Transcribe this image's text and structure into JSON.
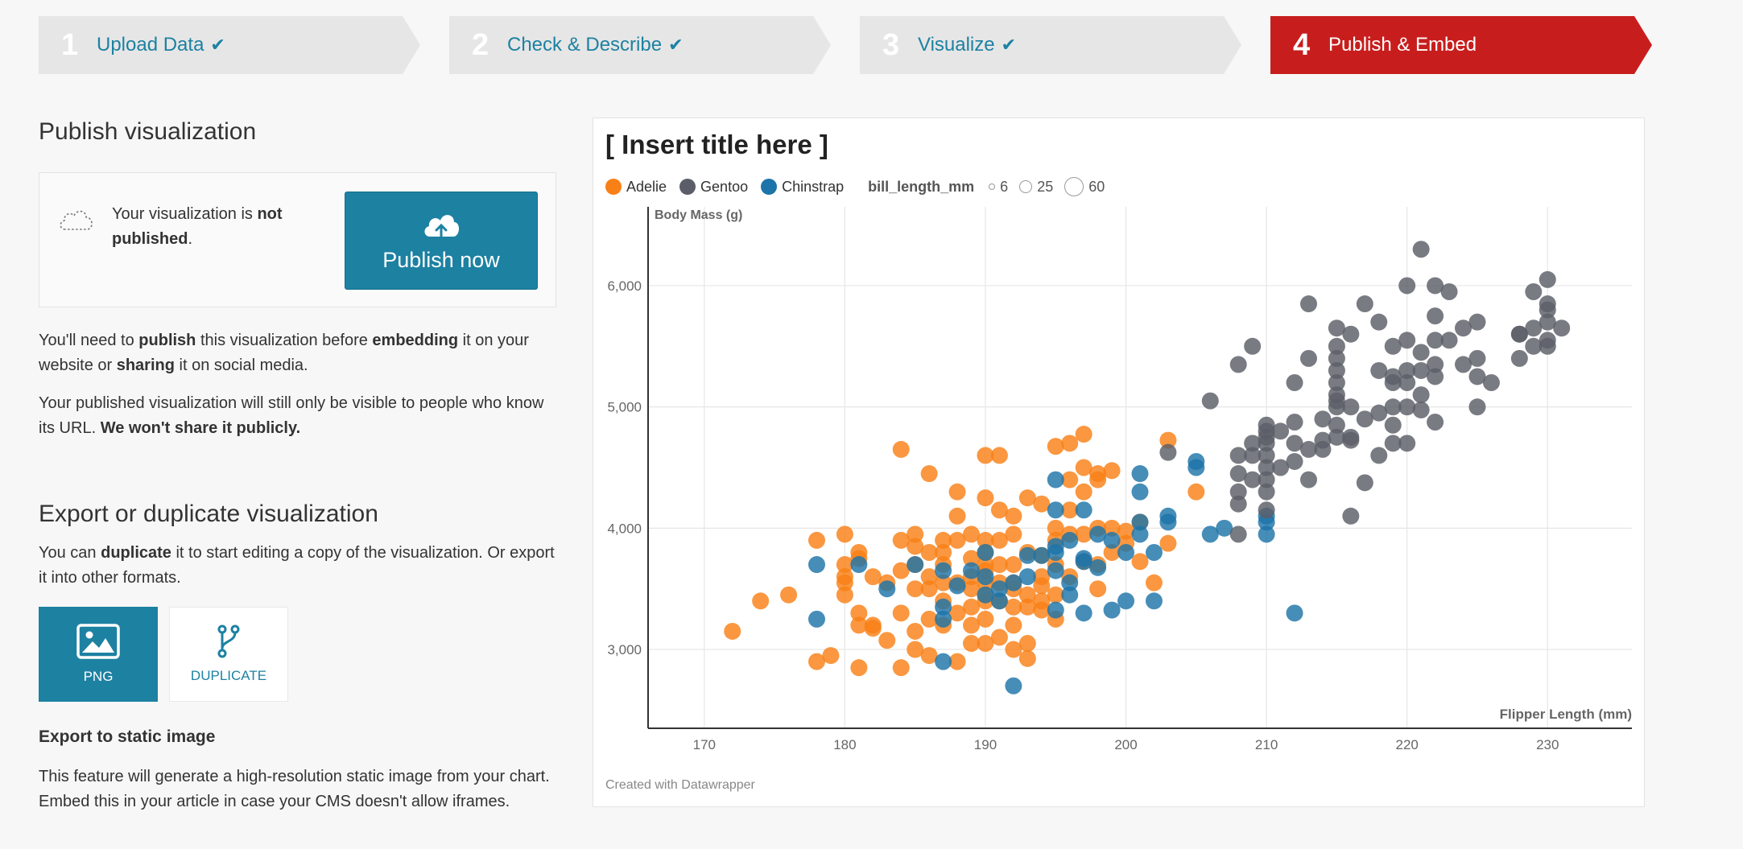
{
  "steps": [
    {
      "num": "1",
      "label": "Upload Data",
      "done": true
    },
    {
      "num": "2",
      "label": "Check & Describe",
      "done": true
    },
    {
      "num": "3",
      "label": "Visualize",
      "done": true
    },
    {
      "num": "4",
      "label": "Publish & Embed",
      "done": false
    }
  ],
  "publish": {
    "heading": "Publish visualization",
    "status_pre": "Your visualization is ",
    "status_bold": "not published",
    "status_post": ".",
    "button_label": "Publish now",
    "note1_a": "You'll need to ",
    "note1_b": "publish",
    "note1_c": " this visualization before ",
    "note1_d": "embedding",
    "note1_e": " it on your website or ",
    "note1_f": "sharing",
    "note1_g": " it on social media.",
    "note2_a": "Your published visualization will still only be visible to people who know its URL. ",
    "note2_b": "We won't share it publicly."
  },
  "export": {
    "heading": "Export or duplicate visualization",
    "desc_a": "You can ",
    "desc_b": "duplicate",
    "desc_c": " it to start editing a copy of the visualization. Or export it into other formats.",
    "png_label": "PNG",
    "duplicate_label": "DUPLICATE",
    "static_heading": "Export to static image",
    "static_desc": "This feature will generate a high-resolution static image from your chart. Embed this in your article in case your CMS doesn't allow iframes."
  },
  "chart": {
    "title": "[ Insert title here ]",
    "size_legend_title": "bill_length_mm",
    "size_legend": [
      "6",
      "25",
      "60"
    ],
    "footer": "Created with Datawrapper"
  },
  "colors": {
    "Adelie": "#f98016",
    "Gentoo": "#5b5e68",
    "Chinstrap": "#1d74a8",
    "accent": "#1d81a2",
    "active_step": "#c71e1d"
  },
  "chart_data": {
    "type": "scatter",
    "xlabel": "Flipper Length (mm)",
    "ylabel": "Body Mass (g)",
    "xlim": [
      166,
      236
    ],
    "ylim": [
      2350,
      6650
    ],
    "xticks": [
      "170",
      "180",
      "190",
      "200",
      "210",
      "220",
      "230"
    ],
    "yticks": [
      "3,000",
      "4,000",
      "5,000",
      "6,000"
    ],
    "legend_placement": "top-left",
    "grid": true,
    "series": [
      {
        "name": "Adelie",
        "points": [
          [
            172,
            3150
          ],
          [
            174,
            3400
          ],
          [
            176,
            3450
          ],
          [
            178,
            3900
          ],
          [
            178,
            2900
          ],
          [
            179,
            2950
          ],
          [
            180,
            3950
          ],
          [
            180,
            3700
          ],
          [
            180,
            3600
          ],
          [
            180,
            3550
          ],
          [
            180,
            3450
          ],
          [
            181,
            3800
          ],
          [
            181,
            3750
          ],
          [
            181,
            3300
          ],
          [
            181,
            3200
          ],
          [
            181,
            2850
          ],
          [
            182,
            3600
          ],
          [
            182,
            3200
          ],
          [
            182,
            3175
          ],
          [
            183,
            3075
          ],
          [
            183,
            3550
          ],
          [
            184,
            3900
          ],
          [
            184,
            3650
          ],
          [
            184,
            3300
          ],
          [
            184,
            4650
          ],
          [
            184,
            2850
          ],
          [
            185,
            3950
          ],
          [
            185,
            3850
          ],
          [
            185,
            3700
          ],
          [
            185,
            3500
          ],
          [
            185,
            3150
          ],
          [
            185,
            3000
          ],
          [
            186,
            3800
          ],
          [
            186,
            3600
          ],
          [
            186,
            3500
          ],
          [
            186,
            3250
          ],
          [
            186,
            2950
          ],
          [
            186,
            4450
          ],
          [
            187,
            3900
          ],
          [
            187,
            3800
          ],
          [
            187,
            3700
          ],
          [
            187,
            3550
          ],
          [
            187,
            3400
          ],
          [
            187,
            3200
          ],
          [
            188,
            3900
          ],
          [
            188,
            3550
          ],
          [
            188,
            3300
          ],
          [
            188,
            4300
          ],
          [
            188,
            2900
          ],
          [
            188,
            4100
          ],
          [
            189,
            3750
          ],
          [
            189,
            3600
          ],
          [
            189,
            3500
          ],
          [
            189,
            3350
          ],
          [
            189,
            3200
          ],
          [
            189,
            3050
          ],
          [
            189,
            3950
          ],
          [
            190,
            4600
          ],
          [
            190,
            4250
          ],
          [
            190,
            3900
          ],
          [
            190,
            3800
          ],
          [
            190,
            3700
          ],
          [
            190,
            3650
          ],
          [
            190,
            3550
          ],
          [
            190,
            3450
          ],
          [
            190,
            3400
          ],
          [
            190,
            3250
          ],
          [
            190,
            3050
          ],
          [
            191,
            4600
          ],
          [
            191,
            4150
          ],
          [
            191,
            3900
          ],
          [
            191,
            3550
          ],
          [
            191,
            3400
          ],
          [
            191,
            3100
          ],
          [
            191,
            3700
          ],
          [
            192,
            4100
          ],
          [
            192,
            3950
          ],
          [
            192,
            3700
          ],
          [
            192,
            3500
          ],
          [
            192,
            3550
          ],
          [
            192,
            3350
          ],
          [
            192,
            3200
          ],
          [
            192,
            3000
          ],
          [
            193,
            3800
          ],
          [
            193,
            3450
          ],
          [
            193,
            3350
          ],
          [
            193,
            3050
          ],
          [
            193,
            2925
          ],
          [
            193,
            4250
          ],
          [
            194,
            4200
          ],
          [
            194,
            3775
          ],
          [
            194,
            3600
          ],
          [
            194,
            3525
          ],
          [
            194,
            3400
          ],
          [
            194,
            3325
          ],
          [
            195,
            4675
          ],
          [
            195,
            4000
          ],
          [
            195,
            3900
          ],
          [
            195,
            3700
          ],
          [
            195,
            3450
          ],
          [
            195,
            3250
          ],
          [
            196,
            4700
          ],
          [
            196,
            4400
          ],
          [
            196,
            4150
          ],
          [
            196,
            3950
          ],
          [
            196,
            3600
          ],
          [
            197,
            4775
          ],
          [
            197,
            4500
          ],
          [
            197,
            4300
          ],
          [
            197,
            3950
          ],
          [
            197,
            3725
          ],
          [
            198,
            4400
          ],
          [
            198,
            4450
          ],
          [
            198,
            4000
          ],
          [
            198,
            3700
          ],
          [
            198,
            3500
          ],
          [
            199,
            4475
          ],
          [
            199,
            4000
          ],
          [
            199,
            3800
          ],
          [
            200,
            3975
          ],
          [
            200,
            3875
          ],
          [
            201,
            4050
          ],
          [
            201,
            3725
          ],
          [
            202,
            3550
          ],
          [
            203,
            4725
          ],
          [
            203,
            3875
          ],
          [
            205,
            4300
          ]
        ]
      },
      {
        "name": "Chinstrap",
        "points": [
          [
            178,
            3250
          ],
          [
            178,
            3700
          ],
          [
            181,
            3700
          ],
          [
            183,
            3500
          ],
          [
            185,
            3700
          ],
          [
            187,
            3350
          ],
          [
            187,
            3250
          ],
          [
            187,
            3650
          ],
          [
            187,
            2900
          ],
          [
            188,
            3525
          ],
          [
            189,
            3650
          ],
          [
            190,
            3450
          ],
          [
            190,
            3800
          ],
          [
            190,
            3600
          ],
          [
            191,
            3400
          ],
          [
            191,
            3500
          ],
          [
            192,
            3550
          ],
          [
            192,
            2700
          ],
          [
            193,
            3775
          ],
          [
            193,
            3600
          ],
          [
            194,
            3775
          ],
          [
            195,
            3800
          ],
          [
            195,
            4400
          ],
          [
            195,
            4150
          ],
          [
            195,
            3650
          ],
          [
            195,
            3325
          ],
          [
            195,
            3850
          ],
          [
            196,
            3550
          ],
          [
            196,
            3900
          ],
          [
            196,
            3450
          ],
          [
            197,
            3750
          ],
          [
            197,
            3725
          ],
          [
            197,
            3300
          ],
          [
            197,
            4150
          ],
          [
            198,
            3675
          ],
          [
            198,
            3950
          ],
          [
            199,
            3900
          ],
          [
            199,
            3325
          ],
          [
            200,
            3800
          ],
          [
            200,
            3400
          ],
          [
            201,
            4050
          ],
          [
            201,
            3950
          ],
          [
            201,
            4450
          ],
          [
            201,
            4300
          ],
          [
            202,
            3400
          ],
          [
            202,
            3800
          ],
          [
            203,
            4100
          ],
          [
            203,
            4050
          ],
          [
            205,
            4550
          ],
          [
            205,
            4500
          ],
          [
            206,
            3950
          ],
          [
            207,
            4000
          ],
          [
            210,
            4050
          ],
          [
            210,
            3950
          ],
          [
            210,
            4100
          ],
          [
            212,
            3300
          ]
        ]
      },
      {
        "name": "Gentoo",
        "points": [
          [
            203,
            4625
          ],
          [
            206,
            5050
          ],
          [
            208,
            4600
          ],
          [
            208,
            5350
          ],
          [
            208,
            4300
          ],
          [
            208,
            4450
          ],
          [
            208,
            4200
          ],
          [
            208,
            3950
          ],
          [
            209,
            4600
          ],
          [
            209,
            4700
          ],
          [
            209,
            4400
          ],
          [
            209,
            5500
          ],
          [
            210,
            4800
          ],
          [
            210,
            4750
          ],
          [
            210,
            4700
          ],
          [
            210,
            4600
          ],
          [
            210,
            4500
          ],
          [
            210,
            4400
          ],
          [
            210,
            4300
          ],
          [
            210,
            4150
          ],
          [
            210,
            4850
          ],
          [
            211,
            4500
          ],
          [
            211,
            4800
          ],
          [
            212,
            4875
          ],
          [
            212,
            4700
          ],
          [
            212,
            4550
          ],
          [
            212,
            5200
          ],
          [
            213,
            4650
          ],
          [
            213,
            4400
          ],
          [
            213,
            5400
          ],
          [
            213,
            5850
          ],
          [
            214,
            4725
          ],
          [
            214,
            4650
          ],
          [
            214,
            4900
          ],
          [
            215,
            5500
          ],
          [
            215,
            5300
          ],
          [
            215,
            5400
          ],
          [
            215,
            5000
          ],
          [
            215,
            5100
          ],
          [
            215,
            5650
          ],
          [
            215,
            4750
          ],
          [
            215,
            5200
          ],
          [
            215,
            4850
          ],
          [
            215,
            5050
          ],
          [
            216,
            5000
          ],
          [
            216,
            4750
          ],
          [
            216,
            4725
          ],
          [
            216,
            4100
          ],
          [
            216,
            5600
          ],
          [
            217,
            4375
          ],
          [
            217,
            4900
          ],
          [
            217,
            5850
          ],
          [
            218,
            5700
          ],
          [
            218,
            4950
          ],
          [
            218,
            5300
          ],
          [
            218,
            4600
          ],
          [
            219,
            5250
          ],
          [
            219,
            5000
          ],
          [
            219,
            5500
          ],
          [
            219,
            4850
          ],
          [
            219,
            5200
          ],
          [
            219,
            4700
          ],
          [
            220,
            5000
          ],
          [
            220,
            5550
          ],
          [
            220,
            5200
          ],
          [
            220,
            5300
          ],
          [
            220,
            4700
          ],
          [
            220,
            6000
          ],
          [
            221,
            6300
          ],
          [
            221,
            5100
          ],
          [
            221,
            5450
          ],
          [
            221,
            4975
          ],
          [
            221,
            5300
          ],
          [
            222,
            5750
          ],
          [
            222,
            5550
          ],
          [
            222,
            5350
          ],
          [
            222,
            5250
          ],
          [
            222,
            4875
          ],
          [
            222,
            6000
          ],
          [
            223,
            5950
          ],
          [
            223,
            5550
          ],
          [
            224,
            5650
          ],
          [
            224,
            5350
          ],
          [
            225,
            5700
          ],
          [
            225,
            5400
          ],
          [
            225,
            5000
          ],
          [
            225,
            5250
          ],
          [
            226,
            5200
          ],
          [
            228,
            5600
          ],
          [
            228,
            5400
          ],
          [
            228,
            5600
          ],
          [
            229,
            5950
          ],
          [
            229,
            5650
          ],
          [
            229,
            5500
          ],
          [
            230,
            6050
          ],
          [
            230,
            5850
          ],
          [
            230,
            5700
          ],
          [
            230,
            5550
          ],
          [
            230,
            5500
          ],
          [
            230,
            5800
          ],
          [
            231,
            5650
          ]
        ]
      }
    ]
  }
}
